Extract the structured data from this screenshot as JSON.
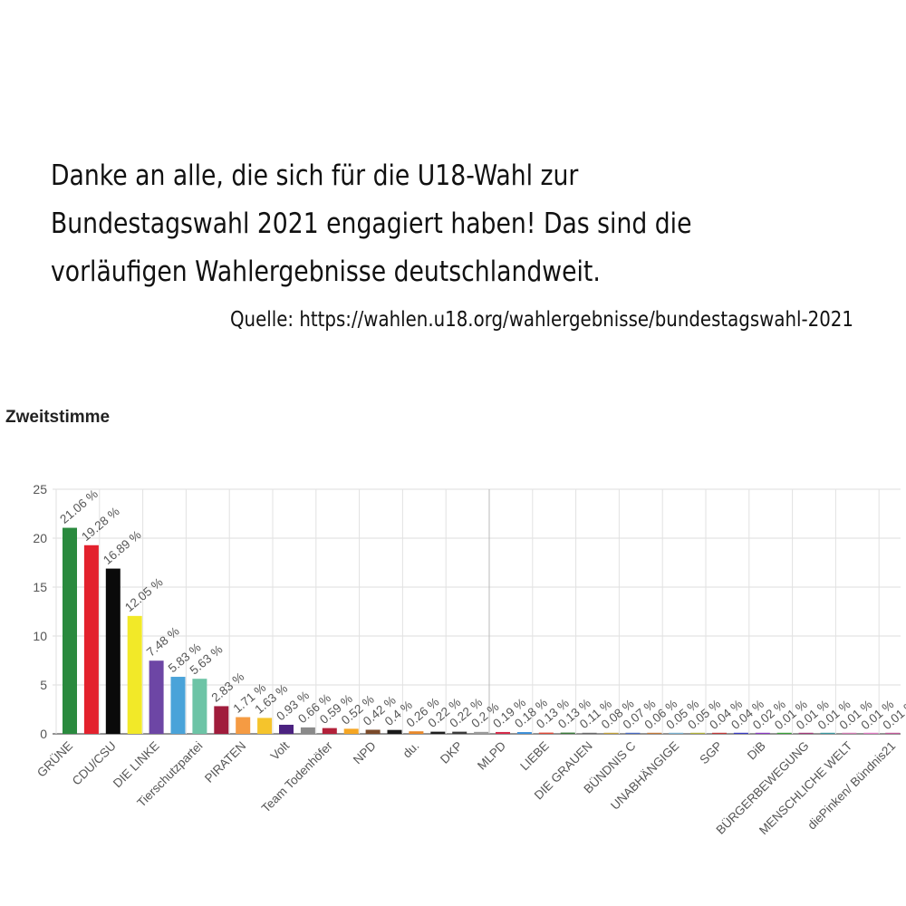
{
  "post": {
    "headline": "Danke an alle, die sich für die U18-Wahl zur Bundestagswahl 2021 engagiert haben! Das sind die vorläufigen Wahlergebnisse deutschlandweit.",
    "source": "Quelle: https://wahlen.u18.org/wahlergebnisse/bundestagswahl-2021"
  },
  "chart_data": {
    "type": "bar",
    "title": "Zweitstimme",
    "xlabel": "",
    "ylabel": "",
    "ylim": [
      0,
      25
    ],
    "yticks": [
      0,
      5,
      10,
      15,
      20,
      25
    ],
    "grid": true,
    "legend": "none",
    "value_suffix": " %",
    "bars": [
      {
        "label": "21.06",
        "value": 21.06,
        "color": "#2a8a3e"
      },
      {
        "label": "19.28",
        "value": 19.28,
        "color": "#e3212d"
      },
      {
        "label": "16.89",
        "value": 16.89,
        "color": "#0a0a0a"
      },
      {
        "label": "12.05",
        "value": 12.05,
        "color": "#f2e928"
      },
      {
        "label": "7.48",
        "value": 7.48,
        "color": "#6d46a5"
      },
      {
        "label": "5.83",
        "value": 5.83,
        "color": "#4aa3d9"
      },
      {
        "label": "5.63",
        "value": 5.63,
        "color": "#6dc4a6"
      },
      {
        "label": "2.83",
        "value": 2.83,
        "color": "#a01c3c"
      },
      {
        "label": "1.71",
        "value": 1.71,
        "color": "#f59b43"
      },
      {
        "label": "1.63",
        "value": 1.63,
        "color": "#f5c42c"
      },
      {
        "label": "0.93",
        "value": 0.93,
        "color": "#4b2280"
      },
      {
        "label": "0.66",
        "value": 0.66,
        "color": "#8a8a8a"
      },
      {
        "label": "0.59",
        "value": 0.59,
        "color": "#b3213a"
      },
      {
        "label": "0.52",
        "value": 0.52,
        "color": "#f5a623"
      },
      {
        "label": "0.42",
        "value": 0.42,
        "color": "#7a4a2a"
      },
      {
        "label": "0.4",
        "value": 0.4,
        "color": "#1a1a1a"
      },
      {
        "label": "0.26",
        "value": 0.26,
        "color": "#e8882a"
      },
      {
        "label": "0.22",
        "value": 0.22,
        "color": "#1e1e1e"
      },
      {
        "label": "0.22",
        "value": 0.22,
        "color": "#3a3a3a"
      },
      {
        "label": "0.2",
        "value": 0.2,
        "color": "#9a9a9a"
      },
      {
        "label": "0.19",
        "value": 0.19,
        "color": "#d42a4a"
      },
      {
        "label": "0.18",
        "value": 0.18,
        "color": "#3a8fd9"
      },
      {
        "label": "0.13",
        "value": 0.13,
        "color": "#e04a3a"
      },
      {
        "label": "0.13",
        "value": 0.13,
        "color": "#3a7a3a"
      },
      {
        "label": "0.11",
        "value": 0.11,
        "color": "#6a6a6a"
      },
      {
        "label": "0.08",
        "value": 0.08,
        "color": "#c2a23a"
      },
      {
        "label": "0.07",
        "value": 0.07,
        "color": "#4a6ac2"
      },
      {
        "label": "0.06",
        "value": 0.06,
        "color": "#c27a3a"
      },
      {
        "label": "0.05",
        "value": 0.05,
        "color": "#7ab2d2"
      },
      {
        "label": "0.05",
        "value": 0.05,
        "color": "#b2b23a"
      },
      {
        "label": "0.04",
        "value": 0.04,
        "color": "#c23a3a"
      },
      {
        "label": "0.04",
        "value": 0.04,
        "color": "#3a3ac2"
      },
      {
        "label": "0.02",
        "value": 0.02,
        "color": "#8a3ac2"
      },
      {
        "label": "0.01",
        "value": 0.01,
        "color": "#3aa23a"
      },
      {
        "label": "0.01",
        "value": 0.01,
        "color": "#a23a7a"
      },
      {
        "label": "0.01",
        "value": 0.01,
        "color": "#3a9aa2"
      },
      {
        "label": "0.01",
        "value": 0.01,
        "color": "#d27ab2"
      },
      {
        "label": "0.01",
        "value": 0.01,
        "color": "#e07ac2"
      },
      {
        "label": "0.01",
        "value": 0.01,
        "color": "#c25a9a"
      }
    ],
    "x_tick_labels": [
      "GRÜNE",
      "CDU/CSU",
      "DIE LINKE",
      "Tierschutzpartei",
      "PIRATEN",
      "Volt",
      "Team Todenhöfer",
      "NPD",
      "du.",
      "DKP",
      "MLPD",
      "LIEBE",
      "DIE GRAUEN",
      "BÜNDNIS C",
      "UNABHÄNGIGE",
      "SGP",
      "DiB",
      "BÜRGERBEWEGUNG",
      "MENSCHLICHE WELT",
      "diePinken/ Bündnis21"
    ]
  }
}
